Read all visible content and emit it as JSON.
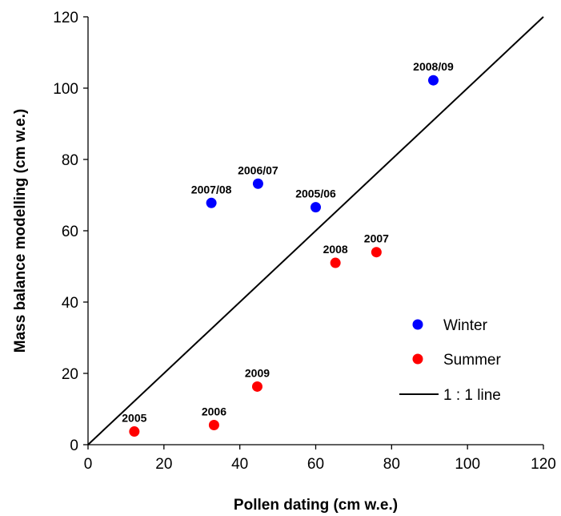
{
  "chart_data": {
    "type": "scatter",
    "title": "",
    "xlabel": "Pollen dating (cm w.e.)",
    "ylabel": "Mass balance modelling (cm w.e.)",
    "xlim": [
      0,
      120
    ],
    "ylim": [
      0,
      120
    ],
    "xticks": [
      0,
      20,
      40,
      60,
      80,
      100,
      120
    ],
    "yticks": [
      0,
      20,
      40,
      60,
      80,
      100,
      120
    ],
    "grid": false,
    "legend_position": "bottom-right",
    "series": [
      {
        "name": "Winter",
        "color": "#0000ff",
        "points": [
          {
            "label": "2007/08",
            "x": 32.5,
            "y": 67.8
          },
          {
            "label": "2006/07",
            "x": 44.8,
            "y": 73.2
          },
          {
            "label": "2005/06",
            "x": 60.0,
            "y": 66.6
          },
          {
            "label": "2008/09",
            "x": 91.0,
            "y": 102.2
          }
        ]
      },
      {
        "name": "Summer",
        "color": "#ff0000",
        "points": [
          {
            "label": "2005",
            "x": 12.2,
            "y": 3.7
          },
          {
            "label": "2006",
            "x": 33.2,
            "y": 5.5
          },
          {
            "label": "2009",
            "x": 44.6,
            "y": 16.3
          },
          {
            "label": "2008",
            "x": 65.2,
            "y": 51.0
          },
          {
            "label": "2007",
            "x": 76.0,
            "y": 54.0
          }
        ]
      }
    ],
    "reference_line": {
      "name": "1 : 1 line",
      "color": "#000000",
      "from": [
        0,
        0
      ],
      "to": [
        120,
        120
      ]
    }
  }
}
